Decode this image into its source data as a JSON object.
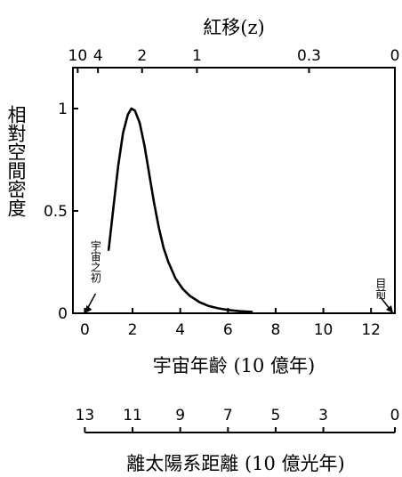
{
  "chart_data": {
    "type": "line",
    "ylabel": "相對空間密度",
    "xlabel": "宇宙年齡 (10 億年)",
    "top_axis_label": "紅移(z)",
    "bottom_axis_label": "離太陽系距離 (10 億光年)",
    "xlim": [
      -0.5,
      13
    ],
    "ylim": [
      0,
      1.2
    ],
    "x_ticks": [
      0,
      2,
      4,
      6,
      8,
      10,
      12
    ],
    "y_ticks": [
      0,
      0.5,
      1
    ],
    "y_tick_labels": [
      "0",
      "0.5",
      "1"
    ],
    "top_ticks": [
      {
        "label": "10",
        "x": -0.3
      },
      {
        "label": "4",
        "x": 0.55
      },
      {
        "label": "2",
        "x": 2.4
      },
      {
        "label": "1",
        "x": 4.7
      },
      {
        "label": "0.3",
        "x": 9.4
      },
      {
        "label": "0",
        "x": 13.0
      }
    ],
    "distance_ticks": [
      {
        "label": "13",
        "x": 0
      },
      {
        "label": "11",
        "x": 2
      },
      {
        "label": "9",
        "x": 4
      },
      {
        "label": "7",
        "x": 6
      },
      {
        "label": "5",
        "x": 8
      },
      {
        "label": "3",
        "x": 10
      },
      {
        "label": "0",
        "x": 13
      }
    ],
    "series": [
      {
        "x": [
          1.0,
          1.2,
          1.4,
          1.6,
          1.8,
          1.95,
          2.1,
          2.3,
          2.5,
          2.7,
          2.9,
          3.1,
          3.3,
          3.5,
          3.8,
          4.1,
          4.4,
          4.8,
          5.2,
          5.6,
          6.0,
          6.5,
          7.0
        ],
        "y": [
          0.31,
          0.52,
          0.72,
          0.88,
          0.97,
          1.0,
          0.99,
          0.93,
          0.82,
          0.68,
          0.54,
          0.42,
          0.32,
          0.25,
          0.17,
          0.12,
          0.085,
          0.055,
          0.035,
          0.024,
          0.016,
          0.01,
          0.007
        ]
      }
    ],
    "annotations": [
      {
        "text": "宇宙之初",
        "x": 0
      },
      {
        "text": "目前",
        "x": 13
      }
    ]
  }
}
